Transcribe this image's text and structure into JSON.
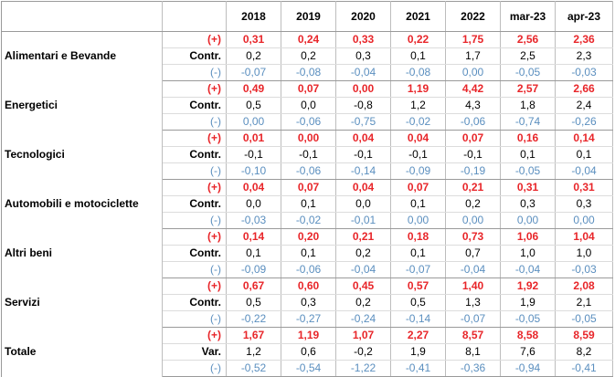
{
  "header": {
    "columns": [
      "2018",
      "2019",
      "2020",
      "2021",
      "2022",
      "mar-23",
      "apr-23"
    ]
  },
  "groups": [
    {
      "name": "Alimentari e Bevande",
      "rows": [
        {
          "label": "(+)",
          "values": [
            "0,31",
            "0,24",
            "0,33",
            "0,22",
            "1,75",
            "2,56",
            "2,36"
          ]
        },
        {
          "label": "Contr.",
          "values": [
            "0,2",
            "0,2",
            "0,3",
            "0,1",
            "1,7",
            "2,5",
            "2,3"
          ]
        },
        {
          "label": "(-)",
          "values": [
            "-0,07",
            "-0,08",
            "-0,04",
            "-0,08",
            "0,00",
            "-0,05",
            "-0,03"
          ]
        }
      ]
    },
    {
      "name": "Energetici",
      "rows": [
        {
          "label": "(+)",
          "values": [
            "0,49",
            "0,07",
            "0,00",
            "1,19",
            "4,42",
            "2,57",
            "2,66"
          ]
        },
        {
          "label": "Contr.",
          "values": [
            "0,5",
            "0,0",
            "-0,8",
            "1,2",
            "4,3",
            "1,8",
            "2,4"
          ]
        },
        {
          "label": "(-)",
          "values": [
            "0,00",
            "-0,06",
            "-0,75",
            "-0,02",
            "-0,06",
            "-0,74",
            "-0,26"
          ]
        }
      ]
    },
    {
      "name": "Tecnologici",
      "rows": [
        {
          "label": "(+)",
          "values": [
            "0,01",
            "0,00",
            "0,04",
            "0,04",
            "0,07",
            "0,16",
            "0,14"
          ]
        },
        {
          "label": "Contr.",
          "values": [
            "-0,1",
            "-0,1",
            "-0,1",
            "-0,1",
            "-0,1",
            "0,1",
            "0,1"
          ]
        },
        {
          "label": "(-)",
          "values": [
            "-0,10",
            "-0,06",
            "-0,14",
            "-0,09",
            "-0,19",
            "-0,05",
            "-0,04"
          ]
        }
      ]
    },
    {
      "name": "Automobili e motociclette",
      "rows": [
        {
          "label": "(+)",
          "values": [
            "0,04",
            "0,07",
            "0,04",
            "0,07",
            "0,21",
            "0,31",
            "0,31"
          ]
        },
        {
          "label": "Contr.",
          "values": [
            "0,0",
            "0,1",
            "0,0",
            "0,1",
            "0,2",
            "0,3",
            "0,3"
          ]
        },
        {
          "label": "(-)",
          "values": [
            "-0,03",
            "-0,02",
            "-0,01",
            "0,00",
            "0,00",
            "0,00",
            "0,00"
          ]
        }
      ]
    },
    {
      "name": "Altri beni",
      "rows": [
        {
          "label": "(+)",
          "values": [
            "0,14",
            "0,20",
            "0,21",
            "0,18",
            "0,73",
            "1,06",
            "1,04"
          ]
        },
        {
          "label": "Contr.",
          "values": [
            "0,1",
            "0,1",
            "0,2",
            "0,1",
            "0,7",
            "1,0",
            "1,0"
          ]
        },
        {
          "label": "(-)",
          "values": [
            "-0,09",
            "-0,06",
            "-0,04",
            "-0,07",
            "-0,04",
            "-0,04",
            "-0,03"
          ]
        }
      ]
    },
    {
      "name": "Servizi",
      "rows": [
        {
          "label": "(+)",
          "values": [
            "0,67",
            "0,60",
            "0,45",
            "0,57",
            "1,40",
            "1,92",
            "2,08"
          ]
        },
        {
          "label": "Contr.",
          "values": [
            "0,5",
            "0,3",
            "0,2",
            "0,5",
            "1,3",
            "1,9",
            "2,1"
          ]
        },
        {
          "label": "(-)",
          "values": [
            "-0,22",
            "-0,27",
            "-0,24",
            "-0,14",
            "-0,07",
            "-0,05",
            "-0,05"
          ]
        }
      ]
    },
    {
      "name": "Totale",
      "rows": [
        {
          "label": "(+)",
          "values": [
            "1,67",
            "1,19",
            "1,07",
            "2,27",
            "8,57",
            "8,58",
            "8,59"
          ]
        },
        {
          "label": "Var.",
          "values": [
            "1,2",
            "0,6",
            "-0,2",
            "1,9",
            "8,1",
            "7,6",
            "8,2"
          ]
        },
        {
          "label": "(-)",
          "values": [
            "-0,52",
            "-0,54",
            "-1,22",
            "-0,41",
            "-0,36",
            "-0,94",
            "-0,41"
          ]
        }
      ]
    }
  ],
  "colors": {
    "positive": "#e8262a",
    "negative": "#5b8fbf",
    "neutral": "#000000"
  }
}
